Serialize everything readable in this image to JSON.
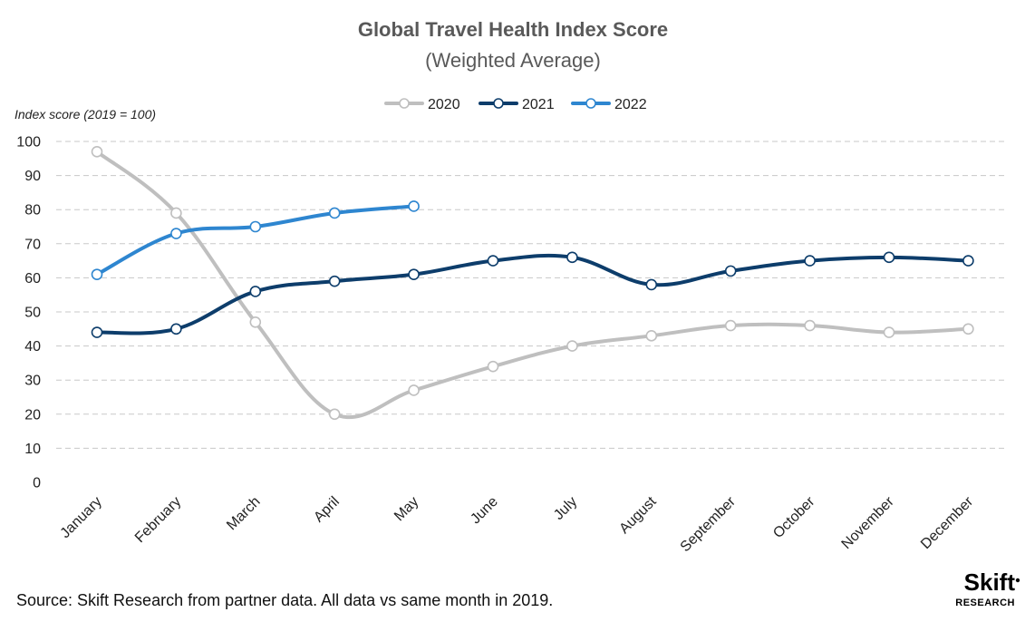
{
  "chart_data": {
    "type": "line",
    "title": "Global Travel Health Index Score",
    "subtitle": "(Weighted Average)",
    "ylabel": "Index score (2019 = 100)",
    "xlabel": "",
    "ylim": [
      0,
      100
    ],
    "yticks": [
      0,
      10,
      20,
      30,
      40,
      50,
      60,
      70,
      80,
      90,
      100
    ],
    "grid": true,
    "legend_position": "top-center",
    "categories": [
      "January",
      "February",
      "March",
      "April",
      "May",
      "June",
      "July",
      "August",
      "September",
      "October",
      "November",
      "December"
    ],
    "series": [
      {
        "name": "2020",
        "color": "#bfbfbf",
        "values": [
          97,
          79,
          47,
          20,
          27,
          34,
          40,
          43,
          46,
          46,
          44,
          45
        ]
      },
      {
        "name": "2021",
        "color": "#0d3d6b",
        "values": [
          44,
          45,
          56,
          59,
          61,
          65,
          66,
          58,
          62,
          65,
          66,
          65
        ]
      },
      {
        "name": "2022",
        "color": "#2e86d0",
        "values": [
          61,
          73,
          75,
          79,
          81,
          null,
          null,
          null,
          null,
          null,
          null,
          null
        ]
      }
    ],
    "source": "Source: Skift Research from partner data. All data vs same month in 2019.",
    "logo": {
      "main": "Skift",
      "sub": "RESEARCH"
    }
  }
}
